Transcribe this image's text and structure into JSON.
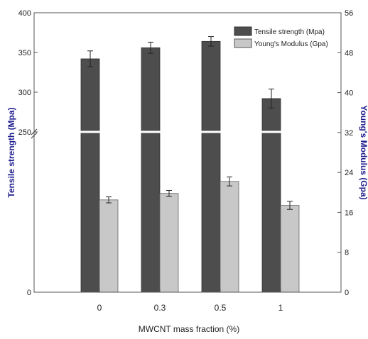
{
  "chart_data": {
    "type": "bar",
    "categories": [
      "0",
      "0.3",
      "0.5",
      "1"
    ],
    "xlabel": "MWCNT mass fraction (%)",
    "ylabel_left": "Tensile strength (Mpa)",
    "ylabel_right": "Young's Modulus (Gpa)",
    "left_axis": {
      "ticks_upper": [
        "250",
        "300",
        "350",
        "400"
      ],
      "ticks_lower": [
        "0"
      ],
      "ylim_upper": [
        250,
        400
      ],
      "axis_break": true
    },
    "right_axis": {
      "ticks": [
        "0",
        "8",
        "16",
        "24",
        "32",
        "40",
        "48",
        "56"
      ],
      "ylim": [
        0,
        56
      ]
    },
    "series": [
      {
        "name": "Tensile strength (Mpa)",
        "axis": "left",
        "color": "#4d4d4d",
        "values": [
          342,
          356,
          364,
          292
        ],
        "errors": [
          10,
          7,
          6,
          12
        ]
      },
      {
        "name": "Young's Modulus (Gpa)",
        "axis": "right",
        "color": "#c8c8c8",
        "values": [
          18.5,
          19.8,
          22.2,
          17.4
        ],
        "errors": [
          0.6,
          0.6,
          0.9,
          0.8
        ]
      }
    ],
    "legend_position": "top-right",
    "grid": false
  },
  "colors": {
    "axis_label": "#1f1f8f",
    "frame": "#555555"
  }
}
